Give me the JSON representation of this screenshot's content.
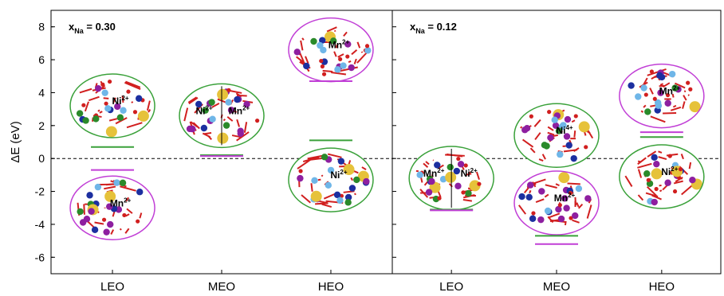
{
  "chart_data": {
    "type": "scatter",
    "ylabel": "ΔE (eV)",
    "ylim": [
      -7,
      9
    ],
    "yticks": [
      8,
      6,
      4,
      2,
      0,
      -2,
      -4,
      -6
    ],
    "reference_line": 0,
    "categories": [
      "LEO",
      "MEO",
      "HEO"
    ],
    "panels": [
      {
        "title": "x",
        "title_sub": "Na",
        "title_value": "= 0.30",
        "levels": [
          {
            "category": "LEO",
            "value": 0.7,
            "color": "#3aa13a"
          },
          {
            "category": "LEO",
            "value": -0.7,
            "color": "#c13fd6"
          },
          {
            "category": "MEO",
            "value": 0.2,
            "color": "#3aa13a"
          },
          {
            "category": "MEO",
            "value": 0.15,
            "color": "#c13fd6"
          },
          {
            "category": "HEO",
            "value": 1.1,
            "color": "#3aa13a"
          },
          {
            "category": "HEO",
            "value": 4.7,
            "color": "#c13fd6"
          }
        ],
        "structures": [
          {
            "category": "LEO",
            "center": 3.2,
            "border": "#3aa13a",
            "ions": [
              "Ni",
              "2+"
            ]
          },
          {
            "category": "LEO",
            "center": -3.0,
            "border": "#c13fd6",
            "ions": [
              "Mn",
              "2+"
            ]
          },
          {
            "category": "MEO",
            "center": 2.6,
            "border": "#3aa13a",
            "ions": [
              "Ni",
              "2+",
              "Mn",
              "2+"
            ]
          },
          {
            "category": "HEO",
            "center": 6.6,
            "border": "#c13fd6",
            "ions": [
              "Mn",
              "2+"
            ]
          },
          {
            "category": "HEO",
            "center": -1.3,
            "border": "#3aa13a",
            "ions": [
              "Ni",
              "2+"
            ]
          }
        ]
      },
      {
        "title": "x",
        "title_sub": "Na",
        "title_value": "= 0.12",
        "levels": [
          {
            "category": "LEO",
            "value": -3.1,
            "color": "#3aa13a"
          },
          {
            "category": "LEO",
            "value": -3.15,
            "color": "#c13fd6"
          },
          {
            "category": "MEO",
            "value": -4.7,
            "color": "#3aa13a"
          },
          {
            "category": "MEO",
            "value": -5.2,
            "color": "#c13fd6"
          },
          {
            "category": "HEO",
            "value": 1.3,
            "color": "#3aa13a"
          },
          {
            "category": "HEO",
            "value": 1.6,
            "color": "#c13fd6"
          }
        ],
        "structures": [
          {
            "category": "LEO",
            "center": -1.2,
            "border": "#3aa13a",
            "ions": [
              "Mn",
              "2+",
              "Ni",
              "2+"
            ]
          },
          {
            "category": "MEO",
            "center": 1.4,
            "border": "#3aa13a",
            "ions": [
              "Ni",
              "4+"
            ]
          },
          {
            "category": "MEO",
            "center": -2.7,
            "border": "#c13fd6",
            "ions": [
              "Mn",
              "2+"
            ]
          },
          {
            "category": "HEO",
            "center": 3.8,
            "border": "#c13fd6",
            "ions": [
              "Mn",
              "2+"
            ]
          },
          {
            "category": "HEO",
            "center": -1.1,
            "border": "#3aa13a",
            "ions": [
              "Ni",
              "2+"
            ]
          }
        ]
      }
    ]
  }
}
